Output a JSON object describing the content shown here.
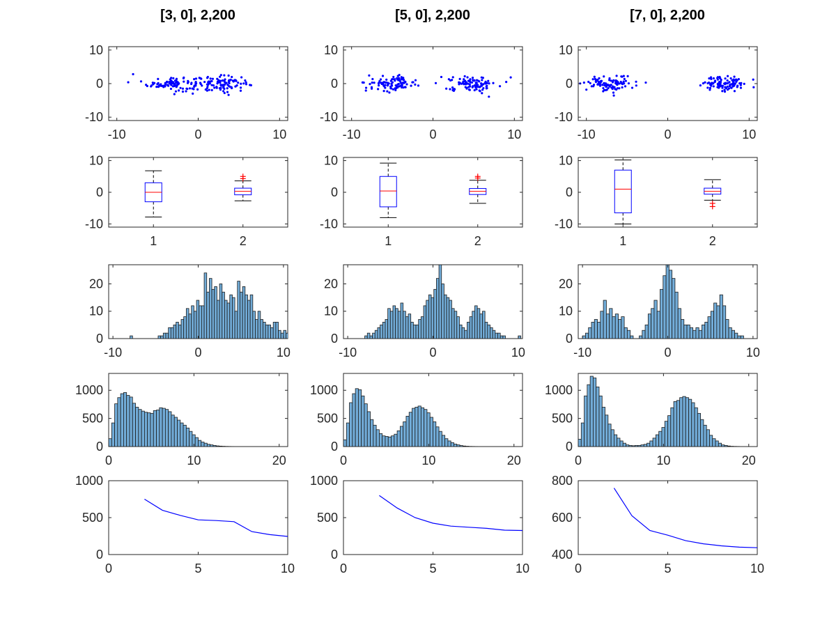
{
  "figure": {
    "columns": [
      {
        "title": "[3, 0], 2,200"
      },
      {
        "title": "[5, 0], 2,200"
      },
      {
        "title": "[7, 0], 2,200"
      }
    ]
  },
  "chart_data": [
    {
      "type": "scatter",
      "column": 0,
      "row": 0,
      "xlim": [
        -11,
        11
      ],
      "ylim": [
        -11,
        11
      ],
      "xticks": [
        -10,
        0,
        10
      ],
      "yticks": [
        -10,
        0,
        10
      ],
      "xticklabels": [
        "-10",
        "0",
        "10"
      ],
      "yticklabels": [
        "-10",
        "0",
        "10"
      ],
      "clusters": [
        {
          "center": [
            -3,
            0
          ],
          "spread_x": 1.6,
          "spread_y": 1.1,
          "count": 100
        },
        {
          "center": [
            3,
            0
          ],
          "spread_x": 1.6,
          "spread_y": 1.1,
          "count": 100
        }
      ],
      "extra_points": [
        [
          -8,
          2.8
        ],
        [
          6.5,
          -0.5
        ]
      ]
    },
    {
      "type": "scatter",
      "column": 1,
      "row": 0,
      "xlim": [
        -11,
        11
      ],
      "ylim": [
        -11,
        11
      ],
      "xticks": [
        -10,
        0,
        10
      ],
      "yticks": [
        -10,
        0,
        10
      ],
      "xticklabels": [
        "-10",
        "0",
        "10"
      ],
      "yticklabels": [
        "-10",
        "0",
        "10"
      ],
      "clusters": [
        {
          "center": [
            -5,
            0
          ],
          "spread_x": 1.5,
          "spread_y": 1.1,
          "count": 100
        },
        {
          "center": [
            5,
            0
          ],
          "spread_x": 1.5,
          "spread_y": 1.1,
          "count": 100
        }
      ],
      "extra_points": [
        [
          -8.5,
          0.3
        ],
        [
          9,
          0.5
        ],
        [
          -1.8,
          -0.6
        ]
      ]
    },
    {
      "type": "scatter",
      "column": 2,
      "row": 0,
      "xlim": [
        -11,
        11
      ],
      "ylim": [
        -11,
        11
      ],
      "xticks": [
        -10,
        0,
        10
      ],
      "yticks": [
        -10,
        0,
        10
      ],
      "xticklabels": [
        "-10",
        "0",
        "10"
      ],
      "yticklabels": [
        "-10",
        "0",
        "10"
      ],
      "clusters": [
        {
          "center": [
            -7,
            0
          ],
          "spread_x": 1.4,
          "spread_y": 1.1,
          "count": 100
        },
        {
          "center": [
            7,
            0
          ],
          "spread_x": 1.4,
          "spread_y": 1.1,
          "count": 100
        }
      ],
      "extra_points": [
        [
          -10,
          -1.8
        ],
        [
          10.5,
          1.2
        ],
        [
          -2.7,
          0.3
        ]
      ]
    },
    {
      "type": "boxplot",
      "column": 0,
      "row": 1,
      "ylim": [
        -11,
        11
      ],
      "yticks": [
        -10,
        0,
        10
      ],
      "yticklabels": [
        "-10",
        "0",
        "10"
      ],
      "categories": [
        "1",
        "2"
      ],
      "boxes": [
        {
          "q1": -3,
          "median": 0,
          "q3": 3,
          "whisker_low": -7.8,
          "whisker_high": 6.8,
          "outliers": []
        },
        {
          "q1": -0.8,
          "median": 0.3,
          "q3": 1.3,
          "whisker_low": -2.7,
          "whisker_high": 3.6,
          "outliers": [
            4.3,
            5.0
          ]
        }
      ]
    },
    {
      "type": "boxplot",
      "column": 1,
      "row": 1,
      "ylim": [
        -11,
        11
      ],
      "yticks": [
        -10,
        0,
        10
      ],
      "yticklabels": [
        "-10",
        "0",
        "10"
      ],
      "categories": [
        "1",
        "2"
      ],
      "boxes": [
        {
          "q1": -4.6,
          "median": 0.4,
          "q3": 5.0,
          "whisker_low": -8.0,
          "whisker_high": 9.2,
          "outliers": []
        },
        {
          "q1": -0.7,
          "median": 0.3,
          "q3": 1.2,
          "whisker_low": -3.5,
          "whisker_high": 3.8,
          "outliers": [
            4.5,
            5.0
          ]
        }
      ]
    },
    {
      "type": "boxplot",
      "column": 2,
      "row": 1,
      "ylim": [
        -11,
        11
      ],
      "yticks": [
        -10,
        0,
        10
      ],
      "yticklabels": [
        "-10",
        "0",
        "10"
      ],
      "categories": [
        "1",
        "2"
      ],
      "boxes": [
        {
          "q1": -6.5,
          "median": 1.0,
          "q3": 7.0,
          "whisker_low": -10.0,
          "whisker_high": 10.2,
          "outliers": []
        },
        {
          "q1": -0.6,
          "median": 0.3,
          "q3": 1.3,
          "whisker_low": -2.5,
          "whisker_high": 4.0,
          "outliers": [
            -3.5,
            -4.5
          ]
        }
      ]
    },
    {
      "type": "bar",
      "column": 0,
      "row": 2,
      "xlim": [
        -10.5,
        10.5
      ],
      "ylim": [
        0,
        27
      ],
      "xticks": [
        -10,
        0,
        10
      ],
      "yticks": [
        0,
        10,
        20
      ],
      "xticklabels": [
        "-10",
        "0",
        "10"
      ],
      "yticklabels": [
        "0",
        "10",
        "20"
      ],
      "bin_start": -8.0,
      "bin_width": 0.3,
      "counts": [
        1,
        0,
        0,
        0,
        0,
        0,
        0,
        0,
        0,
        0,
        0,
        1,
        1,
        2,
        2,
        4,
        4,
        5,
        6,
        5,
        7,
        8,
        11,
        9,
        12,
        10,
        14,
        12,
        12,
        24,
        17,
        22,
        18,
        19,
        14,
        20,
        17,
        14,
        13,
        16,
        15,
        10,
        21,
        17,
        19,
        16,
        14,
        16,
        10,
        7,
        10,
        7,
        6,
        5,
        5,
        4,
        6,
        6,
        3,
        2,
        3,
        2,
        2,
        1,
        1,
        1,
        1,
        0,
        0,
        0
      ]
    },
    {
      "type": "bar",
      "column": 1,
      "row": 2,
      "xlim": [
        -10.5,
        10.5
      ],
      "ylim": [
        0,
        27
      ],
      "xticks": [
        -10,
        0,
        10
      ],
      "yticks": [
        0,
        10,
        20
      ],
      "xticklabels": [
        "-10",
        "0",
        "10"
      ],
      "yticklabels": [
        "0",
        "10",
        "20"
      ],
      "bin_start": -8.0,
      "bin_width": 0.3,
      "counts": [
        1,
        2,
        1,
        2,
        3,
        4,
        5,
        6,
        7,
        11,
        10,
        12,
        11,
        10,
        13,
        10,
        8,
        9,
        6,
        5,
        5,
        7,
        8,
        12,
        14,
        16,
        15,
        18,
        22,
        27,
        20,
        16,
        15,
        14,
        11,
        10,
        8,
        5,
        4,
        3,
        6,
        8,
        10,
        12,
        11,
        9,
        10,
        6,
        5,
        4,
        3,
        2,
        2,
        1,
        1,
        0,
        0,
        0,
        0,
        0,
        1
      ]
    },
    {
      "type": "bar",
      "column": 2,
      "row": 2,
      "xlim": [
        -10.5,
        10.5
      ],
      "ylim": [
        0,
        27
      ],
      "xticks": [
        -10,
        0,
        10
      ],
      "yticks": [
        0,
        10,
        20
      ],
      "xticklabels": [
        "-10",
        "0",
        "10"
      ],
      "yticklabels": [
        "0",
        "10",
        "20"
      ],
      "bin_start": -10.0,
      "bin_width": 0.35,
      "counts": [
        1,
        2,
        4,
        6,
        7,
        6,
        10,
        14,
        9,
        11,
        8,
        9,
        7,
        8,
        4,
        3,
        1,
        0,
        0,
        1,
        3,
        5,
        9,
        11,
        14,
        10,
        18,
        23,
        27,
        25,
        22,
        17,
        11,
        7,
        5,
        5,
        4,
        3,
        4,
        3,
        5,
        6,
        8,
        10,
        13,
        12,
        16,
        12,
        7,
        4,
        3,
        2,
        1,
        1
      ]
    },
    {
      "type": "bar",
      "column": 0,
      "row": 3,
      "xlim": [
        0,
        21
      ],
      "ylim": [
        0,
        1300
      ],
      "xticks": [
        0,
        10,
        20
      ],
      "yticks": [
        0,
        500,
        1000
      ],
      "xticklabels": [
        "0",
        "10",
        "20"
      ],
      "yticklabels": [
        "0",
        "500",
        "1000"
      ],
      "bin_start": 0,
      "bin_width": 0.35,
      "counts": [
        140,
        420,
        760,
        870,
        940,
        960,
        910,
        880,
        770,
        700,
        660,
        630,
        610,
        600,
        590,
        640,
        650,
        690,
        680,
        660,
        620,
        560,
        520,
        470,
        420,
        380,
        330,
        270,
        210,
        160,
        110,
        80,
        60,
        40,
        30,
        20,
        12,
        8,
        5,
        3,
        2,
        1,
        0,
        0,
        0,
        0,
        0,
        0,
        0,
        0,
        0,
        0,
        0,
        0,
        0,
        0,
        0,
        0,
        0,
        0
      ]
    },
    {
      "type": "bar",
      "column": 1,
      "row": 3,
      "xlim": [
        0,
        21
      ],
      "ylim": [
        0,
        1300
      ],
      "xticks": [
        0,
        10,
        20
      ],
      "yticks": [
        0,
        500,
        1000
      ],
      "xticklabels": [
        "0",
        "10",
        "20"
      ],
      "yticklabels": [
        "0",
        "500",
        "1000"
      ],
      "bin_start": 0,
      "bin_width": 0.35,
      "counts": [
        120,
        420,
        780,
        940,
        1030,
        1010,
        900,
        760,
        620,
        480,
        380,
        300,
        230,
        190,
        180,
        170,
        190,
        220,
        280,
        360,
        440,
        540,
        610,
        680,
        700,
        720,
        690,
        660,
        600,
        520,
        440,
        350,
        270,
        200,
        140,
        100,
        70,
        45,
        30,
        18,
        10,
        6,
        3,
        2,
        1,
        0,
        0,
        0,
        0,
        0,
        0,
        0,
        0,
        0,
        0,
        0,
        0,
        0,
        0,
        0
      ]
    },
    {
      "type": "bar",
      "column": 2,
      "row": 3,
      "xlim": [
        0,
        21
      ],
      "ylim": [
        0,
        1300
      ],
      "xticks": [
        0,
        10,
        20
      ],
      "yticks": [
        0,
        500,
        1000
      ],
      "xticklabels": [
        "0",
        "10",
        "20"
      ],
      "yticklabels": [
        "0",
        "500",
        "1000"
      ],
      "bin_start": 0,
      "bin_width": 0.35,
      "counts": [
        130,
        420,
        900,
        1100,
        1250,
        1220,
        1060,
        900,
        700,
        560,
        400,
        300,
        210,
        150,
        100,
        60,
        30,
        20,
        15,
        20,
        20,
        30,
        40,
        60,
        100,
        150,
        210,
        270,
        340,
        450,
        550,
        690,
        800,
        820,
        870,
        890,
        870,
        840,
        780,
        690,
        590,
        480,
        380,
        300,
        200,
        140,
        100,
        60,
        30,
        20,
        10,
        5,
        3,
        2,
        0,
        0,
        0,
        0,
        0,
        0
      ]
    },
    {
      "type": "line",
      "column": 0,
      "row": 4,
      "xlim": [
        0,
        10
      ],
      "ylim": [
        0,
        1000
      ],
      "xticks": [
        0,
        5,
        10
      ],
      "yticks": [
        0,
        500,
        1000
      ],
      "xticklabels": [
        "0",
        "5",
        "10"
      ],
      "yticklabels": [
        "0",
        "500",
        "1000"
      ],
      "x": [
        2,
        3,
        4,
        5,
        6,
        7,
        8,
        9,
        10
      ],
      "y": [
        750,
        600,
        530,
        470,
        460,
        445,
        310,
        270,
        245
      ]
    },
    {
      "type": "line",
      "column": 1,
      "row": 4,
      "xlim": [
        0,
        10
      ],
      "ylim": [
        0,
        1000
      ],
      "xticks": [
        0,
        5,
        10
      ],
      "yticks": [
        0,
        500,
        1000
      ],
      "xticklabels": [
        "0",
        "5",
        "10"
      ],
      "yticklabels": [
        "0",
        "500",
        "1000"
      ],
      "x": [
        2,
        3,
        4,
        5,
        6,
        7,
        8,
        9,
        10
      ],
      "y": [
        800,
        630,
        500,
        425,
        385,
        370,
        355,
        330,
        325
      ]
    },
    {
      "type": "line",
      "column": 2,
      "row": 4,
      "xlim": [
        0,
        10
      ],
      "ylim": [
        400,
        800
      ],
      "xticks": [
        0,
        5,
        10
      ],
      "yticks": [
        400,
        600,
        800
      ],
      "xticklabels": [
        "0",
        "5",
        "10"
      ],
      "yticklabels": [
        "400",
        "600",
        "800"
      ],
      "x": [
        2,
        3,
        4,
        5,
        6,
        7,
        8,
        9,
        10
      ],
      "y": [
        760,
        610,
        530,
        505,
        475,
        458,
        447,
        440,
        437
      ]
    }
  ]
}
